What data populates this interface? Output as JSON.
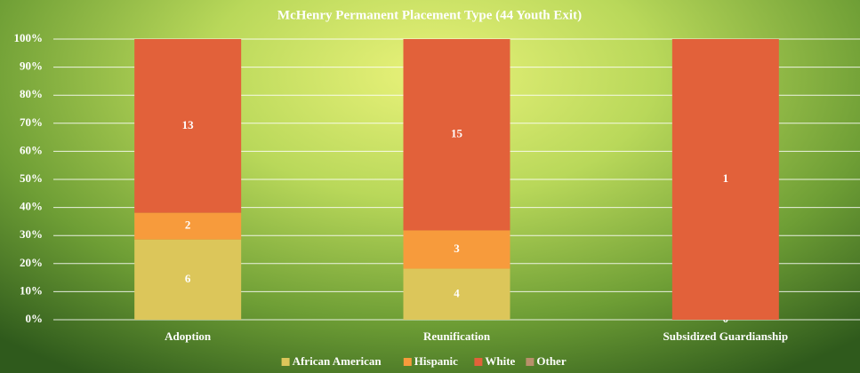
{
  "chart_data": {
    "type": "bar",
    "stacking": "percent",
    "title": "McHenry Permanent Placement Type (44 Youth Exit)",
    "categories": [
      "Adoption",
      "Reunification",
      "Subsidized Guardianship"
    ],
    "series": [
      {
        "name": "African American",
        "color": "#dcc65a",
        "values": [
          6,
          4,
          0
        ]
      },
      {
        "name": "Hispanic",
        "color": "#f79b3c",
        "values": [
          2,
          3,
          null
        ]
      },
      {
        "name": "White",
        "color": "#e2613a",
        "values": [
          13,
          15,
          1
        ]
      },
      {
        "name": "Other",
        "color": "#b9906b",
        "values": [
          null,
          null,
          null
        ]
      }
    ],
    "ylim": [
      0,
      100
    ],
    "yticks": [
      {
        "value": 0,
        "label": "0%"
      },
      {
        "value": 10,
        "label": "10%"
      },
      {
        "value": 20,
        "label": "20%"
      },
      {
        "value": 30,
        "label": "30%"
      },
      {
        "value": 40,
        "label": "40%"
      },
      {
        "value": 50,
        "label": "50%"
      },
      {
        "value": 60,
        "label": "60%"
      },
      {
        "value": 70,
        "label": "70%"
      },
      {
        "value": 80,
        "label": "80%"
      },
      {
        "value": 90,
        "label": "90%"
      },
      {
        "value": 100,
        "label": "100%"
      }
    ],
    "grid": true,
    "legend": "bottom"
  }
}
